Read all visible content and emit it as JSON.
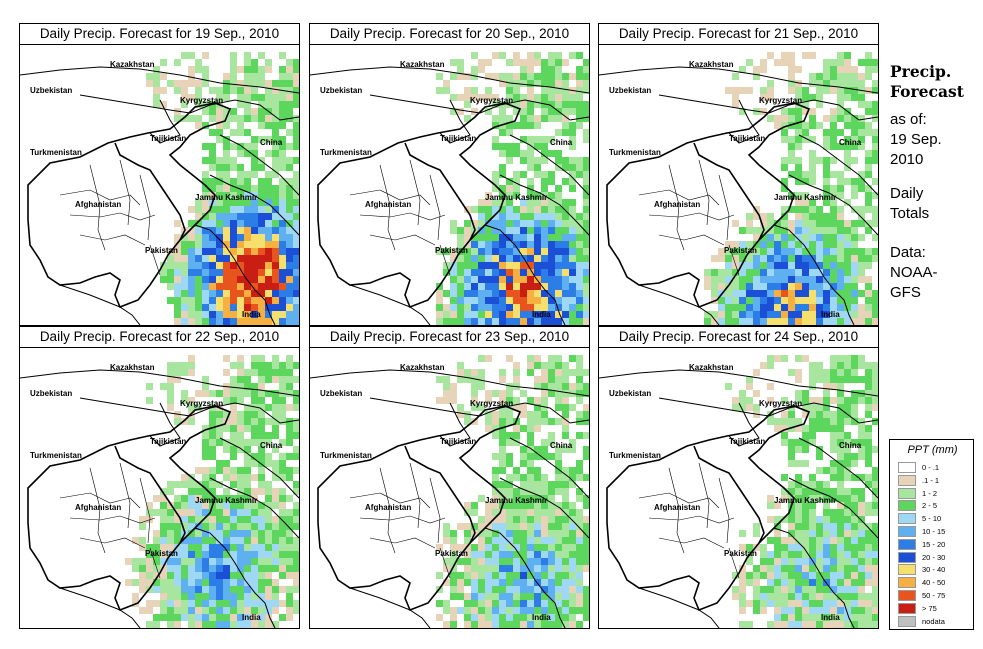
{
  "panels": [
    {
      "title": "Daily Precip. Forecast for  19 Sep., 2010",
      "intensity": 1.0,
      "center_shift": [
        0,
        0
      ]
    },
    {
      "title": "Daily Precip. Forecast for  20 Sep., 2010",
      "intensity": 0.85,
      "center_shift": [
        -20,
        10
      ]
    },
    {
      "title": "Daily Precip. Forecast for  21 Sep., 2010",
      "intensity": 0.7,
      "center_shift": [
        -40,
        25
      ]
    },
    {
      "title": "Daily Precip. Forecast for  22 Sep., 2010",
      "intensity": 0.45,
      "center_shift": [
        -35,
        -10
      ]
    },
    {
      "title": "Daily Precip. Forecast for  23 Sep., 2010",
      "intensity": 0.4,
      "center_shift": [
        -20,
        0
      ]
    },
    {
      "title": "Daily Precip. Forecast for  24 Sep., 2010",
      "intensity": 0.3,
      "center_shift": [
        -10,
        0
      ]
    }
  ],
  "map_labels": {
    "kazakhstan": "Kazakhstan",
    "uzbekistan": "Uzbekistan",
    "kyrgyzstan": "Kyrgyzstan",
    "tajikistan": "Tajikistan",
    "china": "China",
    "turkmenistan": "Turkmenistan",
    "jammu_kashmir": "Jammu Kashmir",
    "afghanistan": "Afghanistan",
    "pakistan": "Pakistan",
    "india": "India"
  },
  "side": {
    "title_line1": "Precip.",
    "title_line2": "Forecast",
    "as_of_line1": "as of:",
    "as_of_line2": "19 Sep.",
    "as_of_line3": "2010",
    "totals_line1": "Daily",
    "totals_line2": "Totals",
    "data_line1": "Data:",
    "data_line2": "NOAA-",
    "data_line3": "GFS"
  },
  "legend": {
    "title": "PPT (mm)",
    "items": [
      {
        "label": "0 - .1",
        "color": "#ffffff"
      },
      {
        "label": ".1 - 1",
        "color": "#e6d3b8"
      },
      {
        "label": "1 - 2",
        "color": "#a8e6a0"
      },
      {
        "label": "2 - 5",
        "color": "#5cd65c"
      },
      {
        "label": "5 - 10",
        "color": "#9fd8f5"
      },
      {
        "label": "10 - 15",
        "color": "#5fb0f0"
      },
      {
        "label": "15 - 20",
        "color": "#2d7de6"
      },
      {
        "label": "20 - 30",
        "color": "#1a4fd6"
      },
      {
        "label": "30 - 40",
        "color": "#f5e06e"
      },
      {
        "label": "40 - 50",
        "color": "#f5b041"
      },
      {
        "label": "50 - 75",
        "color": "#e8541e"
      },
      {
        "label": "> 75",
        "color": "#c81e14"
      },
      {
        "label": "nodata",
        "color": "#c0c0c0"
      }
    ]
  }
}
